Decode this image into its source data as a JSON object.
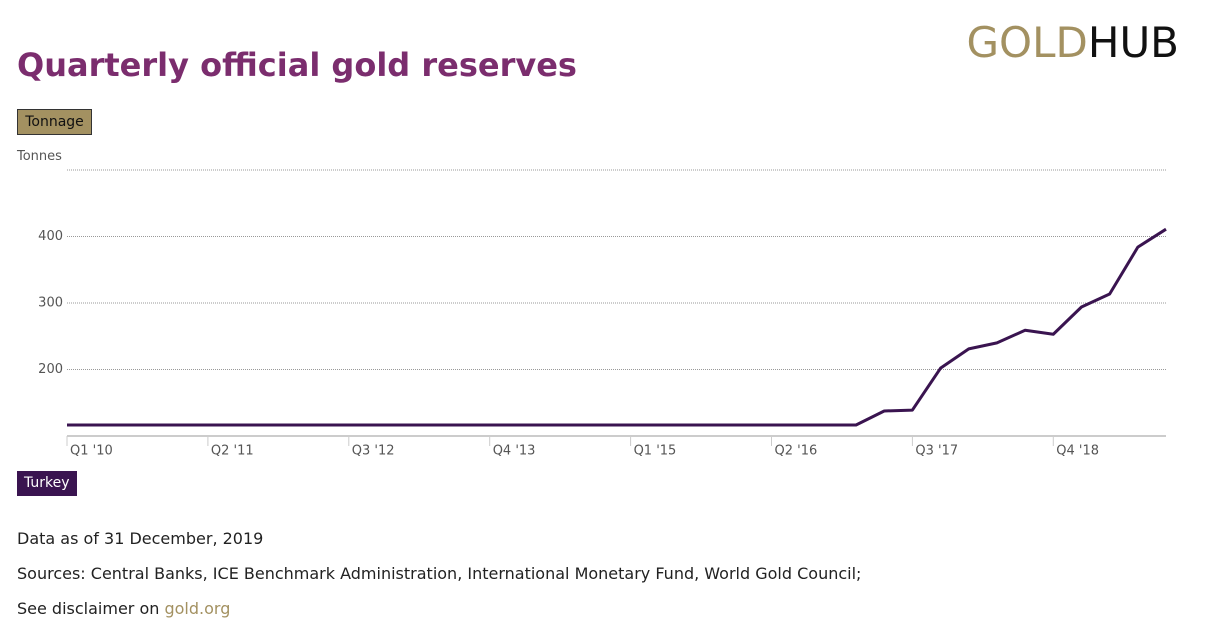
{
  "logo": {
    "part1": "GOLD",
    "part2": "HUB"
  },
  "controls": {
    "measure": "Tonnage"
  },
  "chart_data": {
    "type": "line",
    "title": "Quarterly official gold reserves",
    "y_label": "Tonnes",
    "categories": [
      "Q1 '10",
      null,
      null,
      null,
      null,
      "Q2 '11",
      null,
      null,
      null,
      null,
      "Q3 '12",
      null,
      null,
      null,
      null,
      "Q4 '13",
      null,
      null,
      null,
      null,
      "Q1 '15",
      null,
      null,
      null,
      null,
      "Q2 '16",
      null,
      null,
      null,
      null,
      "Q3 '17",
      null,
      null,
      null,
      null,
      "Q4 '18",
      null,
      null,
      null,
      null
    ],
    "series": [
      {
        "name": "Turkey",
        "color": "#3a1450",
        "values": [
          116.5,
          116.5,
          116.5,
          116.5,
          116.5,
          116.5,
          116.5,
          116.5,
          116.5,
          116.5,
          116.5,
          116.5,
          116.5,
          116.5,
          116.5,
          116.5,
          116.5,
          116.5,
          116.5,
          116.5,
          116.5,
          116.5,
          116.5,
          116.5,
          116.5,
          116.5,
          116.5,
          116.5,
          116.5,
          137.6,
          139,
          202,
          231,
          240,
          259,
          253,
          294,
          313.5,
          384,
          411
        ]
      }
    ],
    "ylim": [
      100,
      500
    ],
    "yticks": [
      200,
      300,
      400
    ],
    "grid": true
  },
  "footer": {
    "data_as_of": "Data as of 31 December, 2019",
    "sources": "Sources: Central Banks, ICE Benchmark Administration, International Monetary Fund, World Gold Council;",
    "disclaimer": "See disclaimer on",
    "link": "gold.org"
  }
}
